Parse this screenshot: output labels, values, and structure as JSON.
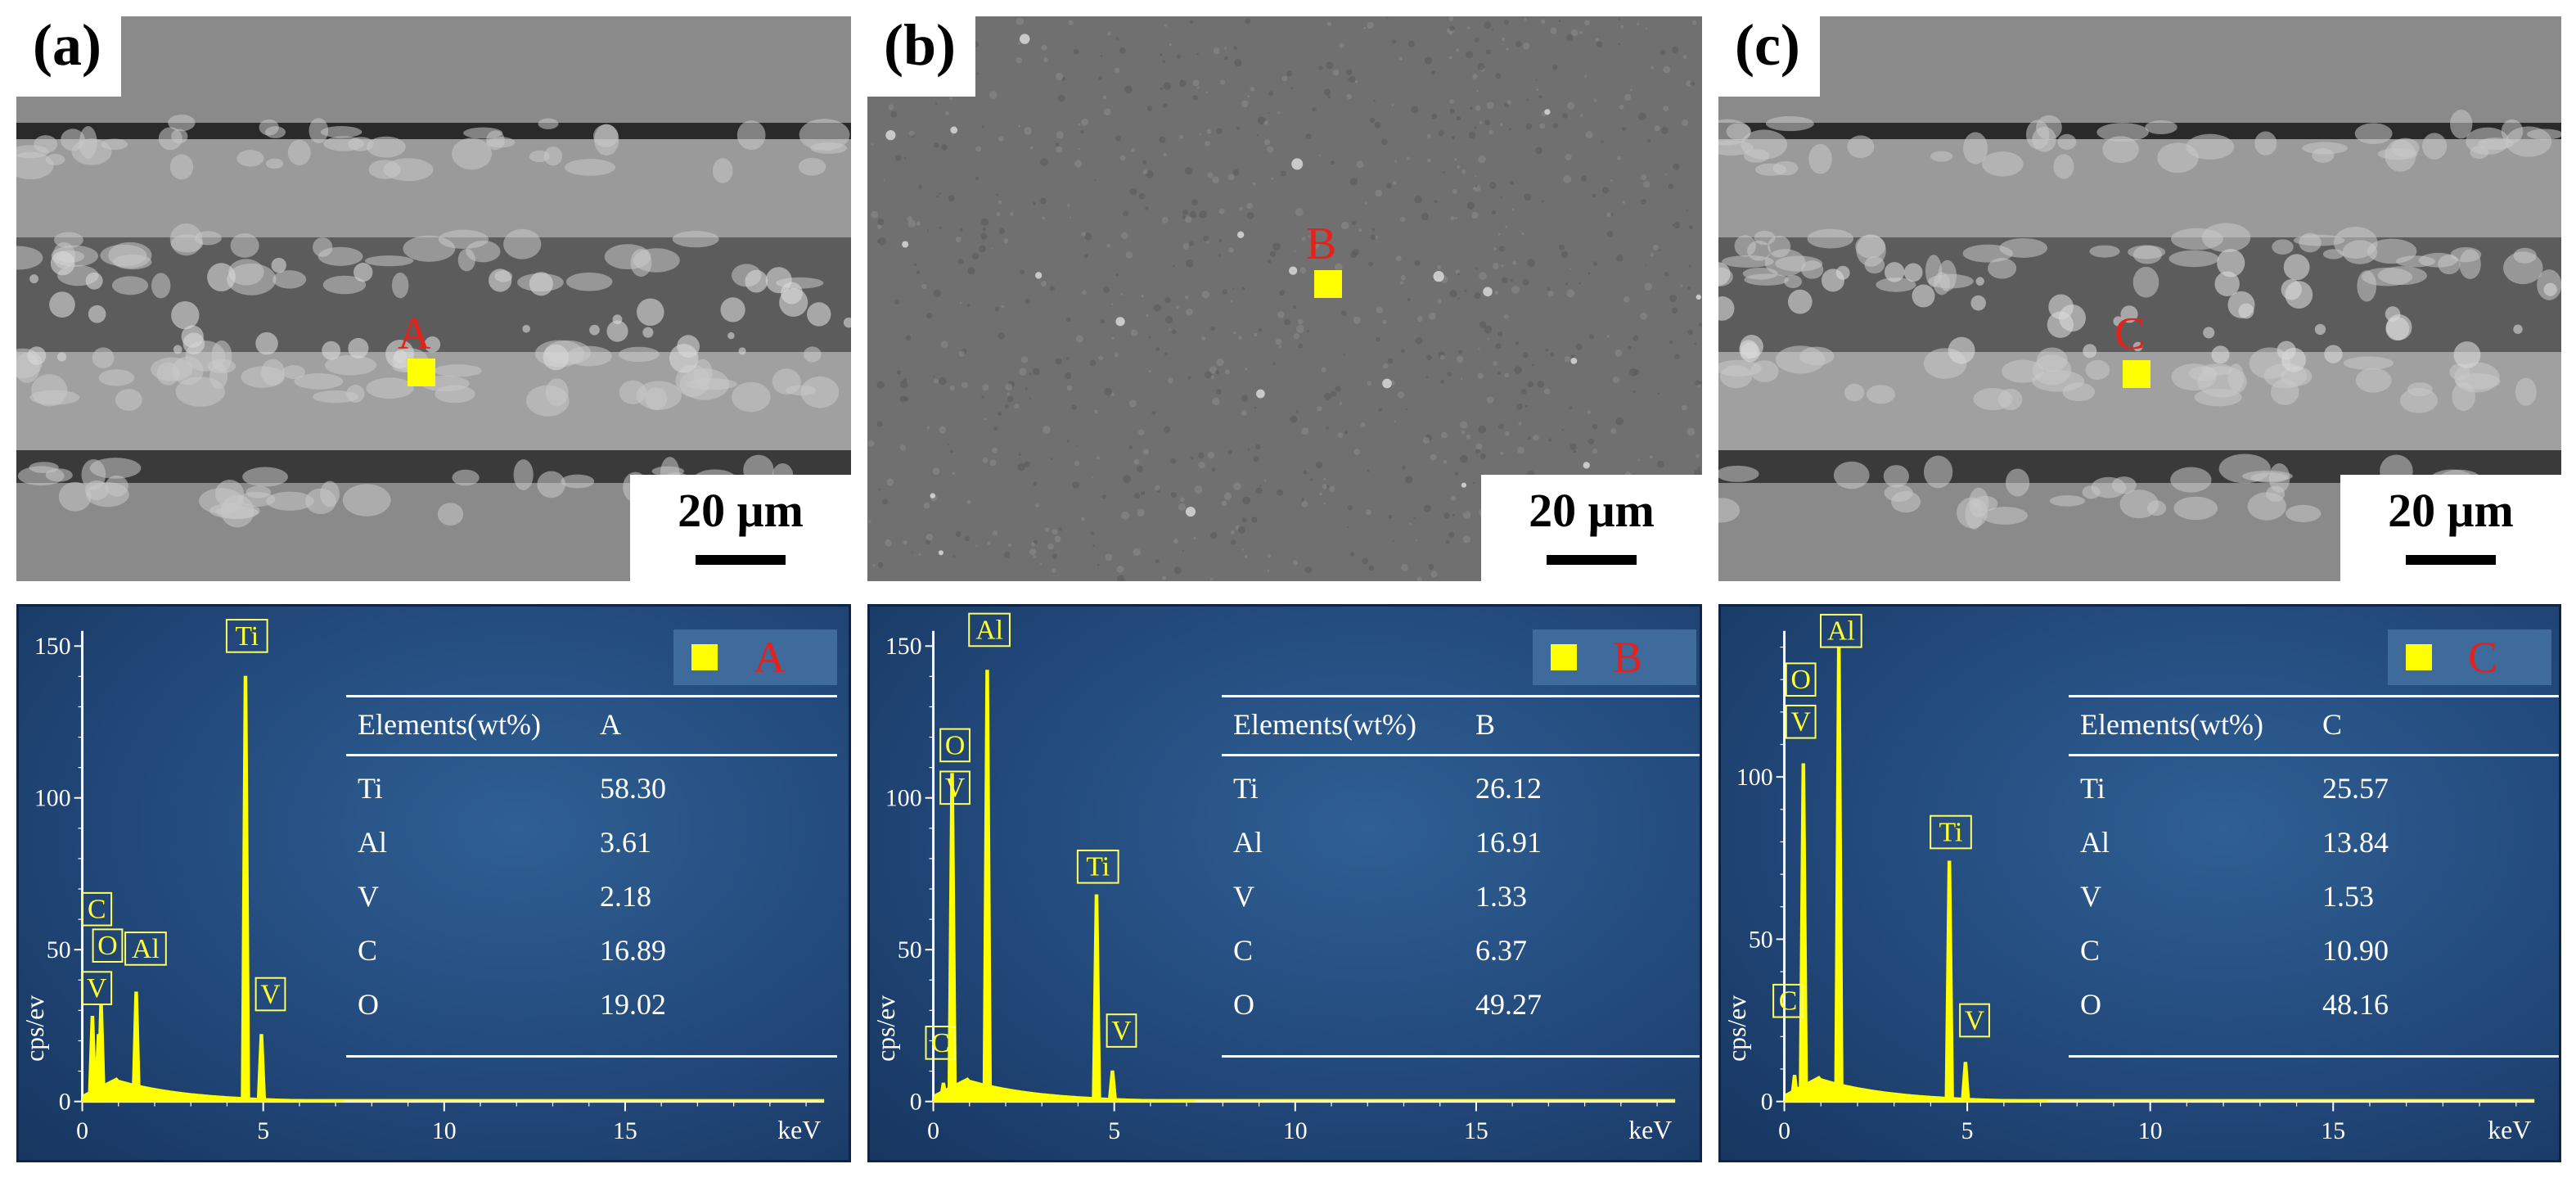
{
  "panels": [
    {
      "label": "(a)",
      "point_label": "A",
      "scale_text": "20 μm",
      "legend_label": "A",
      "table": {
        "header": [
          "Elements(wt%)",
          "A"
        ],
        "rows": [
          [
            "Ti",
            "58.30"
          ],
          [
            "Al",
            "3.61"
          ],
          [
            "V",
            "2.18"
          ],
          [
            "C",
            "16.89"
          ],
          [
            "O",
            "19.02"
          ]
        ]
      },
      "spectrum": {
        "y_ticks": [
          "0",
          "50",
          "100",
          "150"
        ],
        "x_ticks": [
          "0",
          "5",
          "10",
          "15"
        ],
        "ylabel": "cps/ev",
        "xlabel": "keV",
        "ylim": [
          0,
          155
        ],
        "xlim": [
          0,
          20.5
        ],
        "peaks": [
          {
            "label": "C",
            "x": 0.28,
            "y": 28
          },
          {
            "label": "O",
            "x": 0.52,
            "y": 32
          },
          {
            "label": "V",
            "x": 0.45,
            "y": 22
          },
          {
            "label": "Al",
            "x": 1.49,
            "y": 36
          },
          {
            "label": "Ti",
            "x": 4.51,
            "y": 140
          },
          {
            "label": "V",
            "x": 4.95,
            "y": 22
          }
        ],
        "tags": [
          {
            "text": "C",
            "x": 0.4,
            "y": 58
          },
          {
            "text": "O",
            "x": 0.7,
            "y": 46
          },
          {
            "text": "Al",
            "x": 1.75,
            "y": 45
          },
          {
            "text": "V",
            "x": 0.4,
            "y": 32
          },
          {
            "text": "Ti",
            "x": 4.55,
            "y": 148
          },
          {
            "text": "V",
            "x": 5.2,
            "y": 30
          }
        ]
      }
    },
    {
      "label": "(b)",
      "point_label": "B",
      "scale_text": "20 μm",
      "legend_label": "B",
      "table": {
        "header": [
          "Elements(wt%)",
          "B"
        ],
        "rows": [
          [
            "Ti",
            "26.12"
          ],
          [
            "Al",
            "16.91"
          ],
          [
            "V",
            "1.33"
          ],
          [
            "C",
            "6.37"
          ],
          [
            "O",
            "49.27"
          ]
        ]
      },
      "spectrum": {
        "y_ticks": [
          "0",
          "50",
          "100",
          "150"
        ],
        "x_ticks": [
          "0",
          "5",
          "10",
          "15"
        ],
        "ylabel": "cps/ev",
        "xlabel": "keV",
        "ylim": [
          0,
          155
        ],
        "xlim": [
          0,
          20.5
        ],
        "peaks": [
          {
            "label": "C",
            "x": 0.28,
            "y": 6
          },
          {
            "label": "O",
            "x": 0.52,
            "y": 108
          },
          {
            "label": "Al",
            "x": 1.49,
            "y": 142
          },
          {
            "label": "Ti",
            "x": 4.51,
            "y": 68
          },
          {
            "label": "V",
            "x": 4.95,
            "y": 10
          }
        ],
        "tags": [
          {
            "text": "O",
            "x": 0.6,
            "y": 112
          },
          {
            "text": "V",
            "x": 0.6,
            "y": 98
          },
          {
            "text": "Al",
            "x": 1.55,
            "y": 150
          },
          {
            "text": "Ti",
            "x": 4.55,
            "y": 72
          },
          {
            "text": "V",
            "x": 5.2,
            "y": 18
          },
          {
            "text": "C",
            "x": 0.2,
            "y": 14
          }
        ]
      }
    },
    {
      "label": "(c)",
      "point_label": "C",
      "scale_text": "20 μm",
      "legend_label": "C",
      "table": {
        "header": [
          "Elements(wt%)",
          "C"
        ],
        "rows": [
          [
            "Ti",
            "25.57"
          ],
          [
            "Al",
            "13.84"
          ],
          [
            "V",
            "1.53"
          ],
          [
            "C",
            "10.90"
          ],
          [
            "O",
            "48.16"
          ]
        ]
      },
      "spectrum": {
        "y_ticks": [
          "0",
          "50",
          "100"
        ],
        "x_ticks": [
          "0",
          "5",
          "10",
          "15"
        ],
        "ylabel": "cps/ev",
        "xlabel": "keV",
        "ylim": [
          0,
          145
        ],
        "xlim": [
          0,
          20.5
        ],
        "peaks": [
          {
            "label": "C",
            "x": 0.28,
            "y": 8
          },
          {
            "label": "O",
            "x": 0.52,
            "y": 104
          },
          {
            "label": "Al",
            "x": 1.49,
            "y": 140
          },
          {
            "label": "Ti",
            "x": 4.51,
            "y": 74
          },
          {
            "label": "V",
            "x": 4.95,
            "y": 12
          }
        ],
        "tags": [
          {
            "text": "O",
            "x": 0.45,
            "y": 125
          },
          {
            "text": "V",
            "x": 0.45,
            "y": 112
          },
          {
            "text": "Al",
            "x": 1.55,
            "y": 140
          },
          {
            "text": "Ti",
            "x": 4.55,
            "y": 78
          },
          {
            "text": "V",
            "x": 5.2,
            "y": 20
          },
          {
            "text": "C",
            "x": 0.1,
            "y": 26
          }
        ]
      }
    }
  ]
}
